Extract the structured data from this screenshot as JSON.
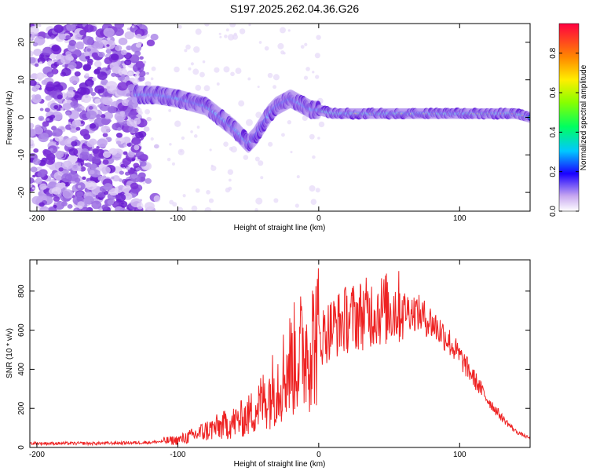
{
  "figure_title": "S197.2025.262.04.36.G26",
  "colors": {
    "snr_line": "#ee2222",
    "frame": "#000000",
    "spec_cold": "#b28ee8",
    "spec_mid": "#7a1fd6",
    "spec_hot": "#d11a2a"
  },
  "chart_data": [
    {
      "type": "heatmap",
      "title": "S197.2025.262.04.36.G26",
      "xlabel": "Height of straight line (km)",
      "ylabel": "Frequency (Hz)",
      "xlim": [
        -205,
        150
      ],
      "ylim": [
        -25,
        25
      ],
      "xticks": [
        -200,
        -100,
        0,
        100
      ],
      "xtick_labels": [
        "-200",
        "-100",
        "0",
        "100"
      ],
      "yticks": [
        -20,
        -10,
        0,
        10,
        20
      ],
      "ytick_labels": [
        "-20",
        "-10",
        "0",
        "10",
        "20"
      ],
      "colorbar": {
        "label": "Normalized spectral amplitude",
        "range": [
          0,
          0.95
        ],
        "ticks": [
          0.0,
          0.2,
          0.4,
          0.6,
          0.8
        ],
        "tick_labels": [
          "0.0",
          "0.2",
          "0.4",
          "0.6",
          "0.8"
        ]
      },
      "ridge_curve": {
        "x": [
          -130,
          -115,
          -100,
          -90,
          -80,
          -70,
          -60,
          -55,
          -50,
          -45,
          -40,
          -35,
          -30,
          -25,
          -20,
          -15,
          -10,
          -5,
          0,
          10,
          20,
          40,
          60,
          80,
          100,
          120,
          140,
          150
        ],
        "y": [
          6,
          6,
          5,
          4,
          3,
          0,
          -3,
          -5,
          -7,
          -5,
          -2,
          1,
          3,
          4,
          5,
          4,
          3,
          2,
          2,
          1,
          1,
          1,
          1,
          1,
          1,
          1,
          1,
          0
        ]
      }
    },
    {
      "type": "line",
      "xlabel": "Height of straight line (km)",
      "ylabel": "SNR (10 * v/v)",
      "xlim": [
        -205,
        150
      ],
      "ylim": [
        0,
        960
      ],
      "xticks": [
        -200,
        -100,
        0,
        100
      ],
      "xtick_labels": [
        "-200",
        "-100",
        "0",
        "100"
      ],
      "yticks": [
        0,
        200,
        400,
        600,
        800
      ],
      "ytick_labels": [
        "0",
        "200",
        "400",
        "600",
        "800"
      ],
      "series": [
        {
          "name": "SNR",
          "x": [
            -205,
            -180,
            -160,
            -140,
            -120,
            -100,
            -90,
            -80,
            -70,
            -60,
            -50,
            -40,
            -30,
            -20,
            -10,
            0,
            10,
            20,
            30,
            40,
            50,
            60,
            70,
            80,
            90,
            100,
            110,
            120,
            130,
            140,
            150
          ],
          "y": [
            20,
            20,
            20,
            22,
            25,
            35,
            55,
            80,
            100,
            120,
            150,
            220,
            300,
            400,
            470,
            540,
            600,
            640,
            660,
            680,
            690,
            700,
            680,
            630,
            560,
            460,
            350,
            240,
            150,
            80,
            45
          ]
        }
      ]
    }
  ]
}
